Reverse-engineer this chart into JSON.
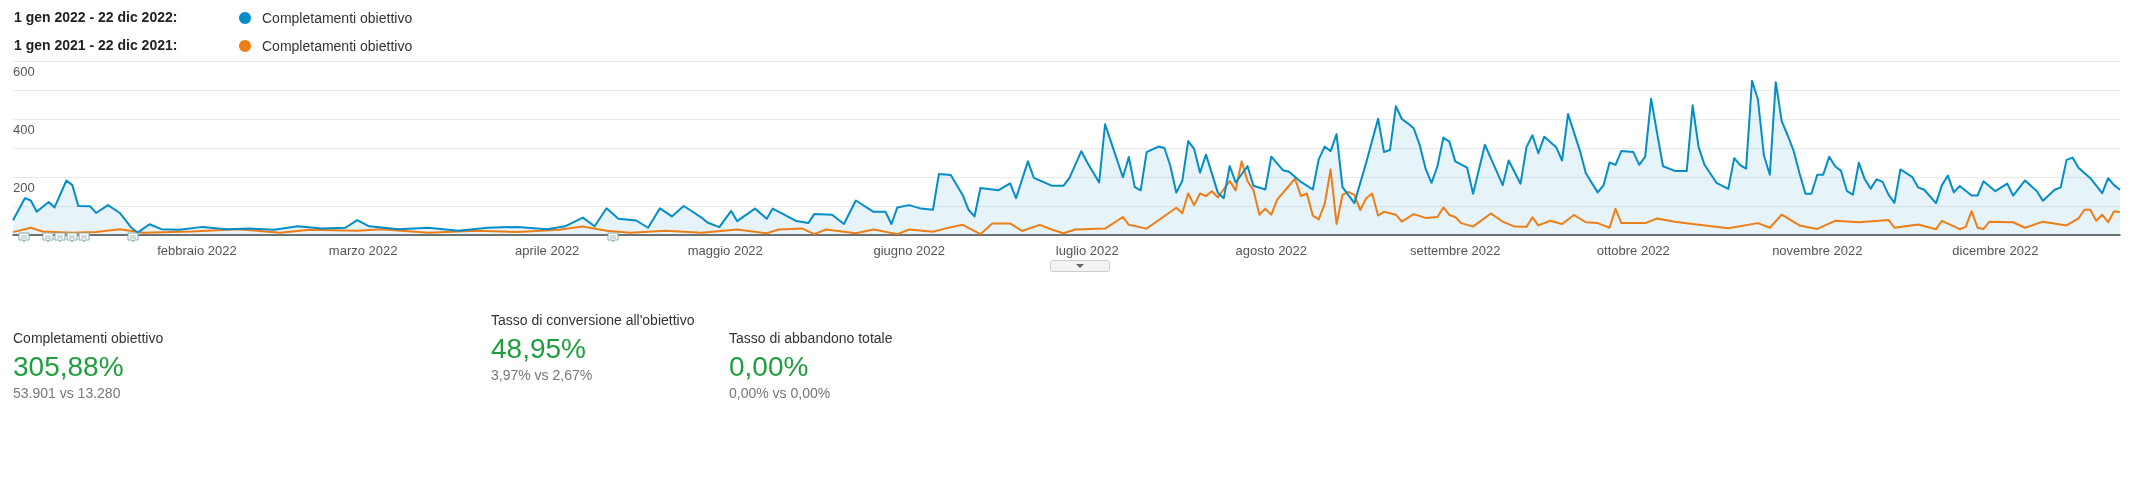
{
  "chart_data": [
    {
      "type": "line",
      "legend": "top left",
      "marker": "none",
      "line_style": "solid",
      "grid": "y",
      "annotations": [
        "1 gen 2022 - 22 dic 2022:",
        "1 gen 2021 - 22 dic 2021:"
      ],
      "xlim": [
        "2022-01-01",
        "2022-12-22"
      ],
      "xticks": [
        {
          "value": "2022-02-01",
          "label": "febbraio 2022"
        },
        {
          "value": "2022-03-01",
          "label": "marzo 2022"
        },
        {
          "value": "2022-04-01",
          "label": "aprile 2022"
        },
        {
          "value": "2022-05-01",
          "label": "maggio 2022"
        },
        {
          "value": "2022-06-01",
          "label": "giugno 2022"
        },
        {
          "value": "2022-07-01",
          "label": "luglio 2022"
        },
        {
          "value": "2022-08-01",
          "label": "agosto 2022"
        },
        {
          "value": "2022-09-01",
          "label": "settembre 2022"
        },
        {
          "value": "2022-10-01",
          "label": "ottobre 2022"
        },
        {
          "value": "2022-11-01",
          "label": "novembre 2022"
        },
        {
          "value": "2022-12-01",
          "label": "dicembre 2022"
        }
      ],
      "ylim": [
        0,
        600
      ],
      "yticks": [
        {
          "value": 0,
          "label": null
        },
        {
          "value": 100,
          "label": null
        },
        200,
        {
          "value": 300,
          "label": null
        },
        400,
        {
          "value": 500,
          "label": null
        },
        600
      ],
      "series": [
        {
          "name": "Completamenti obiettivo",
          "type": "area",
          "color": "#058dc7",
          "x": [
            "2022-01-01",
            "2022-01-03",
            "2022-01-04",
            "2022-01-05",
            "2022-01-07",
            "2022-01-08",
            "2022-01-10",
            "2022-01-11",
            "2022-01-12",
            "2022-01-14",
            "2022-01-15",
            "2022-01-17",
            "2022-01-19",
            "2022-01-21",
            "2022-01-22",
            "2022-01-24",
            "2022-01-26",
            "2022-01-29",
            "2022-02-02",
            "2022-02-06",
            "2022-02-10",
            "2022-02-14",
            "2022-02-18",
            "2022-02-22",
            "2022-02-26",
            "2022-02-28",
            "2022-03-02",
            "2022-03-07",
            "2022-03-12",
            "2022-03-17",
            "2022-03-22",
            "2022-03-27",
            "2022-04-01",
            "2022-04-04",
            "2022-04-07",
            "2022-04-09",
            "2022-04-11",
            "2022-04-13",
            "2022-04-16",
            "2022-04-18",
            "2022-04-20",
            "2022-04-22",
            "2022-04-24",
            "2022-04-25",
            "2022-04-27",
            "2022-04-28",
            "2022-04-30",
            "2022-05-02",
            "2022-05-03",
            "2022-05-06",
            "2022-05-08",
            "2022-05-09",
            "2022-05-13",
            "2022-05-15",
            "2022-05-16",
            "2022-05-19",
            "2022-05-21",
            "2022-05-23",
            "2022-05-26",
            "2022-05-28",
            "2022-05-29",
            "2022-05-30",
            "2022-06-01",
            "2022-06-03",
            "2022-06-05",
            "2022-06-06",
            "2022-06-08",
            "2022-06-10",
            "2022-06-11",
            "2022-06-12",
            "2022-06-13",
            "2022-06-16",
            "2022-06-18",
            "2022-06-19",
            "2022-06-21",
            "2022-06-22",
            "2022-06-25",
            "2022-06-27",
            "2022-06-28",
            "2022-06-30",
            "2022-07-01",
            "2022-07-03",
            "2022-07-04",
            "2022-07-05",
            "2022-07-07",
            "2022-07-08",
            "2022-07-09",
            "2022-07-10",
            "2022-07-11",
            "2022-07-13",
            "2022-07-14",
            "2022-07-15",
            "2022-07-16",
            "2022-07-17",
            "2022-07-18",
            "2022-07-19",
            "2022-07-20",
            "2022-07-21",
            "2022-07-23",
            "2022-07-24",
            "2022-07-25",
            "2022-07-26",
            "2022-07-28",
            "2022-07-29",
            "2022-07-31",
            "2022-08-01",
            "2022-08-03",
            "2022-08-04",
            "2022-08-06",
            "2022-08-08",
            "2022-08-09",
            "2022-08-10",
            "2022-08-11",
            "2022-08-12",
            "2022-08-13",
            "2022-08-15",
            "2022-08-17",
            "2022-08-19",
            "2022-08-20",
            "2022-08-21",
            "2022-08-22",
            "2022-08-23",
            "2022-08-24",
            "2022-08-25",
            "2022-08-26",
            "2022-08-27",
            "2022-08-28",
            "2022-08-29",
            "2022-08-30",
            "2022-08-31",
            "2022-09-01",
            "2022-09-03",
            "2022-09-04",
            "2022-09-06",
            "2022-09-09",
            "2022-09-10",
            "2022-09-12",
            "2022-09-13",
            "2022-09-14",
            "2022-09-15",
            "2022-09-16",
            "2022-09-18",
            "2022-09-19",
            "2022-09-20",
            "2022-09-22",
            "2022-09-23",
            "2022-09-25",
            "2022-09-26",
            "2022-09-27",
            "2022-09-28",
            "2022-09-29",
            "2022-10-01",
            "2022-10-02",
            "2022-10-03",
            "2022-10-04",
            "2022-10-05",
            "2022-10-06",
            "2022-10-08",
            "2022-10-10",
            "2022-10-11",
            "2022-10-12",
            "2022-10-13",
            "2022-10-15",
            "2022-10-17",
            "2022-10-18",
            "2022-10-19",
            "2022-10-20",
            "2022-10-21",
            "2022-10-22",
            "2022-10-23",
            "2022-10-24",
            "2022-10-25",
            "2022-10-26",
            "2022-10-27",
            "2022-10-28",
            "2022-10-29",
            "2022-10-30",
            "2022-10-31",
            "2022-11-01",
            "2022-11-02",
            "2022-11-03",
            "2022-11-04",
            "2022-11-05",
            "2022-11-06",
            "2022-11-07",
            "2022-11-08",
            "2022-11-09",
            "2022-11-10",
            "2022-11-11",
            "2022-11-12",
            "2022-11-13",
            "2022-11-14",
            "2022-11-15",
            "2022-11-17",
            "2022-11-18",
            "2022-11-19",
            "2022-11-21",
            "2022-11-22",
            "2022-11-23",
            "2022-11-24",
            "2022-11-25",
            "2022-11-27",
            "2022-11-28",
            "2022-11-29",
            "2022-12-01",
            "2022-12-03",
            "2022-12-04",
            "2022-12-06",
            "2022-12-08",
            "2022-12-09",
            "2022-12-11",
            "2022-12-12",
            "2022-12-13",
            "2022-12-14",
            "2022-12-15",
            "2022-12-17",
            "2022-12-19",
            "2022-12-20",
            "2022-12-21",
            "2022-12-22"
          ],
          "values": [
            51,
            127,
            119,
            80,
            114,
            95,
            188,
            172,
            100,
            99,
            76,
            103,
            76,
            24,
            8,
            37,
            20,
            18,
            28,
            20,
            22,
            18,
            30,
            22,
            25,
            51,
            30,
            20,
            25,
            15,
            25,
            28,
            20,
            30,
            60,
            30,
            92,
            56,
            50,
            25,
            92,
            64,
            100,
            87,
            60,
            43,
            27,
            83,
            48,
            91,
            56,
            91,
            48,
            41,
            72,
            70,
            38,
            119,
            80,
            80,
            38,
            95,
            103,
            91,
            87,
            210,
            207,
            138,
            87,
            64,
            162,
            154,
            178,
            127,
            254,
            197,
            170,
            170,
            197,
            289,
            250,
            181,
            382,
            321,
            199,
            269,
            165,
            154,
            286,
            305,
            300,
            238,
            146,
            186,
            324,
            297,
            215,
            277,
            146,
            127,
            238,
            181,
            238,
            170,
            157,
            270,
            223,
            218,
            183,
            157,
            261,
            305,
            289,
            348,
            165,
            110,
            250,
            401,
            286,
            293,
            444,
            400,
            385,
            368,
            311,
            229,
            180,
            237,
            336,
            322,
            254,
            232,
            142,
            311,
            172,
            257,
            177,
            303,
            344,
            282,
            339,
            303,
            257,
            417,
            291,
            213,
            147,
            172,
            250,
            242,
            290,
            286,
            242,
            270,
            470,
            352,
            237,
            221,
            221,
            447,
            303,
            242,
            180,
            159,
            265,
            241,
            229,
            532,
            467,
            275,
            208,
            527,
            393,
            344,
            291,
            213,
            142,
            142,
            208,
            208,
            270,
            237,
            221,
            151,
            139,
            249,
            192,
            160,
            192,
            183,
            139,
            111,
            226,
            200,
            164,
            156,
            110,
            172,
            205,
            147,
            169,
            136,
            136,
            185,
            151,
            177,
            136,
            188,
            151,
            118,
            156,
            164,
            259,
            267,
            232,
            196,
            144,
            196,
            172,
            156
          ]
        },
        {
          "name": "Completamenti obiettivo",
          "type": "line",
          "color": "#ed7e17",
          "x": [
            "2022-01-01",
            "2022-01-04",
            "2022-01-06",
            "2022-01-11",
            "2022-01-15",
            "2022-01-19",
            "2022-01-23",
            "2022-01-31",
            "2022-02-08",
            "2022-02-15",
            "2022-02-20",
            "2022-02-28",
            "2022-03-04",
            "2022-03-12",
            "2022-03-20",
            "2022-03-27",
            "2022-04-03",
            "2022-04-07",
            "2022-04-11",
            "2022-04-15",
            "2022-04-21",
            "2022-04-27",
            "2022-05-03",
            "2022-05-08",
            "2022-05-10",
            "2022-05-14",
            "2022-05-16",
            "2022-05-18",
            "2022-05-23",
            "2022-05-26",
            "2022-05-30",
            "2022-06-01",
            "2022-06-05",
            "2022-06-07",
            "2022-06-10",
            "2022-06-13",
            "2022-06-15",
            "2022-06-18",
            "2022-06-20",
            "2022-06-23",
            "2022-06-25",
            "2022-06-27",
            "2022-06-29",
            "2022-07-04",
            "2022-07-07",
            "2022-07-08",
            "2022-07-11",
            "2022-07-13",
            "2022-07-16",
            "2022-07-17",
            "2022-07-18",
            "2022-07-19",
            "2022-07-20",
            "2022-07-21",
            "2022-07-22",
            "2022-07-23",
            "2022-07-25",
            "2022-07-26",
            "2022-07-27",
            "2022-07-28",
            "2022-07-29",
            "2022-07-30",
            "2022-07-31",
            "2022-08-01",
            "2022-08-02",
            "2022-08-05",
            "2022-08-06",
            "2022-08-07",
            "2022-08-08",
            "2022-08-09",
            "2022-08-10",
            "2022-08-11",
            "2022-08-12",
            "2022-08-13",
            "2022-08-14",
            "2022-08-15",
            "2022-08-16",
            "2022-08-17",
            "2022-08-18",
            "2022-08-19",
            "2022-08-20",
            "2022-08-22",
            "2022-08-23",
            "2022-08-25",
            "2022-08-27",
            "2022-08-29",
            "2022-08-30",
            "2022-08-31",
            "2022-09-01",
            "2022-09-02",
            "2022-09-04",
            "2022-09-07",
            "2022-09-09",
            "2022-09-11",
            "2022-09-13",
            "2022-09-14",
            "2022-09-15",
            "2022-09-17",
            "2022-09-19",
            "2022-09-21",
            "2022-09-23",
            "2022-09-25",
            "2022-09-27",
            "2022-09-28",
            "2022-09-29",
            "2022-10-03",
            "2022-10-05",
            "2022-10-08",
            "2022-10-11",
            "2022-10-17",
            "2022-10-22",
            "2022-10-24",
            "2022-10-26",
            "2022-10-29",
            "2022-11-01",
            "2022-11-04",
            "2022-11-08",
            "2022-11-13",
            "2022-11-14",
            "2022-11-18",
            "2022-11-21",
            "2022-11-22",
            "2022-11-25",
            "2022-11-26",
            "2022-11-27",
            "2022-11-28",
            "2022-11-29",
            "2022-11-30",
            "2022-12-04",
            "2022-12-06",
            "2022-12-09",
            "2022-12-13",
            "2022-12-15",
            "2022-12-16",
            "2022-12-17",
            "2022-12-18",
            "2022-12-19",
            "2022-12-20",
            "2022-12-21",
            "2022-12-22"
          ],
          "values": [
            10,
            25,
            12,
            8,
            10,
            20,
            8,
            12,
            20,
            8,
            18,
            15,
            20,
            8,
            15,
            10,
            18,
            29,
            15,
            8,
            15,
            8,
            19,
            6,
            19,
            22,
            3,
            19,
            6,
            19,
            3,
            19,
            11,
            22,
            35,
            3,
            40,
            40,
            14,
            35,
            19,
            6,
            19,
            22,
            62,
            35,
            22,
            51,
            94,
            75,
            143,
            103,
            143,
            134,
            151,
            130,
            186,
            154,
            254,
            186,
            154,
            70,
            91,
            70,
            122,
            194,
            134,
            143,
            67,
            54,
            107,
            226,
            38,
            138,
            149,
            138,
            86,
            127,
            143,
            67,
            80,
            70,
            46,
            72,
            59,
            62,
            95,
            69,
            62,
            41,
            29,
            74,
            46,
            29,
            28,
            61,
            33,
            49,
            38,
            69,
            44,
            41,
            25,
            90,
            41,
            41,
            57,
            46,
            38,
            23,
            41,
            25,
            70,
            33,
            21,
            49,
            44,
            52,
            25,
            36,
            20,
            49,
            20,
            28,
            82,
            25,
            21,
            46,
            44,
            25,
            46,
            33,
            57,
            87,
            87,
            49,
            70,
            44,
            82,
            79
          ]
        }
      ]
    },
    {
      "type": "other",
      "annotations": [
        "Completamenti obiettivo",
        "305,88%",
        "53.901 vs 13.280",
        "Tasso di conversione all'obiettivo",
        "48,95%",
        "3,97% vs 2,67%",
        "Tasso di abbandono totale",
        "0,00%",
        "0,00% vs 0,00%"
      ]
    }
  ]
}
